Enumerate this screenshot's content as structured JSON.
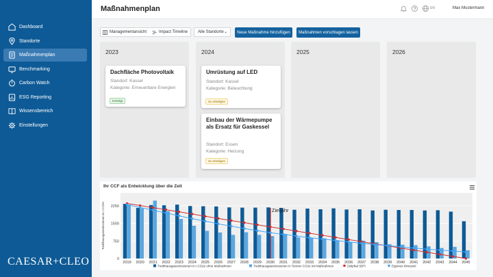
{
  "sidebar": {
    "items": [
      {
        "label": "Dashboard",
        "icon": "grid-icon"
      },
      {
        "label": "Standorte",
        "icon": "location-pin-icon"
      },
      {
        "label": "Maßnahmenplan",
        "icon": "document-icon",
        "active": true
      },
      {
        "label": "Benchmarking",
        "icon": "monitor-icon"
      },
      {
        "label": "Carbon Watch",
        "icon": "stopwatch-icon"
      },
      {
        "label": "ESG Reporting",
        "icon": "report-icon"
      },
      {
        "label": "Wissensbereich",
        "icon": "book-icon"
      },
      {
        "label": "Einstellungen",
        "icon": "gear-icon"
      }
    ],
    "logo": "CAESAR+CLEO"
  },
  "header": {
    "title": "Maßnahmenplan",
    "lang": "EN",
    "user": "Max Mustermann",
    "icons": [
      "bell-icon",
      "help-icon",
      "globe-icon"
    ]
  },
  "toolbar": {
    "view_management": "Managementansicht",
    "view_timeline": "Impact Timeline",
    "location_select": "Alle Standorte",
    "add_button": "Neue Maßnahme hinzufügen",
    "suggest_button": "Maßnahmen vorschlagen lassen"
  },
  "board": {
    "columns": [
      {
        "year": "2023",
        "cards": [
          {
            "title": "Dachfläche Photovoltaik",
            "location": "Standort: Kassel",
            "category": "Kategorie: Erneuerbare Energien",
            "status": "Erledigt",
            "status_type": "done"
          }
        ]
      },
      {
        "year": "2024",
        "cards": [
          {
            "title": "Umrüstung auf LED",
            "location": "Standort: Kassel",
            "category": "Kategorie: Beleuchtung",
            "status": "Zu erledigen",
            "status_type": "todo"
          },
          {
            "title": "Einbau der Wärmepumpe als Ersatz für Gaskessel",
            "location": "Standort: Essen",
            "category": "Kategorie: Heizung",
            "status": "Zu erledigen",
            "status_type": "todo"
          }
        ]
      },
      {
        "year": "2025",
        "cards": []
      },
      {
        "year": "2026",
        "cards": []
      }
    ]
  },
  "chart": {
    "title": "Ihr CCF als Entwicklung über die Zeit",
    "menu_icon": "hamburger-menu-icon"
  },
  "chart_data": {
    "type": "bar",
    "ylabel": "Treibhausgasemissionen in t CO2e",
    "ylim": [
      0,
      2800
    ],
    "yticks": [
      0,
      750,
      1500,
      2250
    ],
    "categories": [
      "2019",
      "2020",
      "2021",
      "2022",
      "2023",
      "2024",
      "2025",
      "2026",
      "2027",
      "2028",
      "2029",
      "2030",
      "2031",
      "2032",
      "2033",
      "2034",
      "2035",
      "2036",
      "2037",
      "2038",
      "2039",
      "2040",
      "2041",
      "2042",
      "2043",
      "2044",
      "2045"
    ],
    "annotation": {
      "label": "Zieljahr",
      "x": "2030",
      "color": "#b71c1c"
    },
    "legend_position": "bottom",
    "grid": true,
    "series": [
      {
        "name": "Treibhausgasemissionen in t CO2e ohne Maßnahmen",
        "kind": "bar",
        "color": "#0e5a96",
        "values": [
          2330,
          2160,
          2280,
          2270,
          2300,
          2240,
          2230,
          2220,
          2180,
          2170,
          2170,
          2180,
          2160,
          2080,
          2130,
          2100,
          2140,
          2090,
          2100,
          2050,
          2080,
          2070,
          2070,
          2050,
          2060,
          2000,
          1590
        ]
      },
      {
        "name": "Treibhausgasemissionen in Tonnen CO2e mit Maßnahmen",
        "kind": "bar",
        "color": "#5aa7df",
        "values": [
          2300,
          2140,
          2470,
          2020,
          1690,
          1400,
          1180,
          1110,
          1010,
          1120,
          1010,
          960,
          1050,
          900,
          880,
          860,
          780,
          710,
          760,
          700,
          610,
          590,
          570,
          520,
          450,
          500,
          350
        ]
      },
      {
        "name": "Zielpfad SBTi",
        "kind": "line",
        "color": "#d32f2f",
        "values": [
          2350,
          2260,
          2170,
          2080,
          1990,
          1900,
          1800,
          1710,
          1620,
          1530,
          1440,
          1350,
          1260,
          1170,
          1080,
          990,
          900,
          810,
          720,
          630,
          540,
          450,
          360,
          270,
          180,
          90,
          0
        ]
      },
      {
        "name": "Eigenes Klimaziel",
        "kind": "line",
        "color": "#42a5f5",
        "values": [
          2300,
          2180,
          2060,
          1940,
          1820,
          1700,
          1590,
          1480,
          1380,
          1280,
          1190,
          1100,
          1030,
          960,
          890,
          830,
          770,
          710,
          650,
          600,
          550,
          500,
          450,
          400,
          360,
          320,
          280
        ]
      }
    ]
  }
}
